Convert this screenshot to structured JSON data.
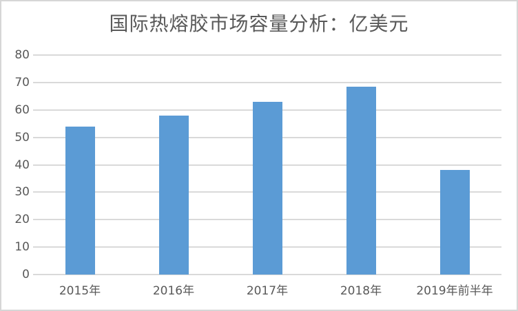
{
  "chart_data": {
    "type": "bar",
    "title": "国际热熔胶市场容量分析：亿美元",
    "categories": [
      "2015年",
      "2016年",
      "2017年",
      "2018年",
      "2019年前半年"
    ],
    "values": [
      54,
      58,
      63,
      68.5,
      38
    ],
    "xlabel": "",
    "ylabel": "",
    "ylim": [
      0,
      80
    ],
    "yticks": [
      0,
      10,
      20,
      30,
      40,
      50,
      60,
      70,
      80
    ],
    "grid": true,
    "legend_position": "none",
    "colors": {
      "bar": "#5b9bd5",
      "gridline": "#d9d9d9",
      "axis_line": "#d9d9d9",
      "tick_label": "#595959",
      "title": "#595959",
      "frame_border": "#d6d6d6",
      "background": "#ffffff"
    }
  }
}
